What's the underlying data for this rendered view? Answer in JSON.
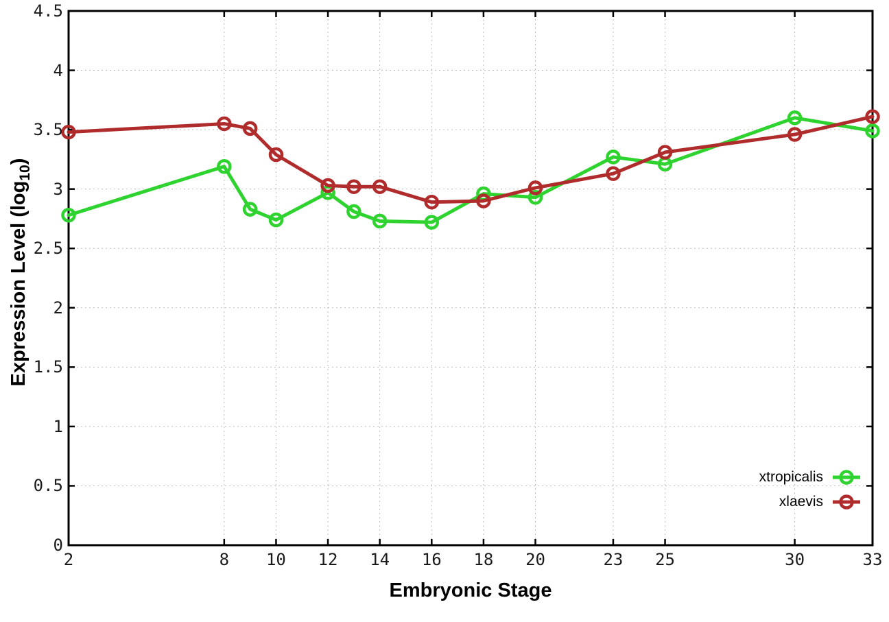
{
  "chart_data": {
    "type": "line",
    "xlabel": "Embryonic Stage",
    "ylabel": "Expression Level (log10)",
    "ylabel_parts": {
      "prefix": "Expression Level (log",
      "sub": "10",
      "suffix": ")"
    },
    "x": [
      2,
      8,
      9,
      10,
      12,
      13,
      14,
      16,
      18,
      20,
      23,
      25,
      30,
      33
    ],
    "series": [
      {
        "name": "xtropicalis",
        "color": "#2fd32f",
        "marker": "open-circle",
        "values": [
          2.78,
          3.19,
          2.83,
          2.74,
          2.97,
          2.81,
          2.73,
          2.72,
          2.96,
          2.93,
          3.27,
          3.21,
          3.6,
          3.49
        ]
      },
      {
        "name": "xlaevis",
        "color": "#b02c2c",
        "marker": "open-circle",
        "values": [
          3.48,
          3.55,
          3.51,
          3.29,
          3.03,
          3.02,
          3.02,
          2.89,
          2.9,
          3.01,
          3.13,
          3.31,
          3.46,
          3.61
        ]
      }
    ],
    "xticks": [
      2,
      8,
      10,
      12,
      14,
      16,
      18,
      20,
      23,
      25,
      30,
      33
    ],
    "yticks": [
      0,
      0.5,
      1,
      1.5,
      2,
      2.5,
      3,
      3.5,
      4,
      4.5
    ],
    "xlim": [
      2,
      33
    ],
    "ylim": [
      0,
      4.5
    ],
    "grid": true,
    "grid_style": "dotted",
    "legend_position": "bottom-right",
    "border_color": "#000000",
    "grid_color": "#bdbdbd"
  }
}
